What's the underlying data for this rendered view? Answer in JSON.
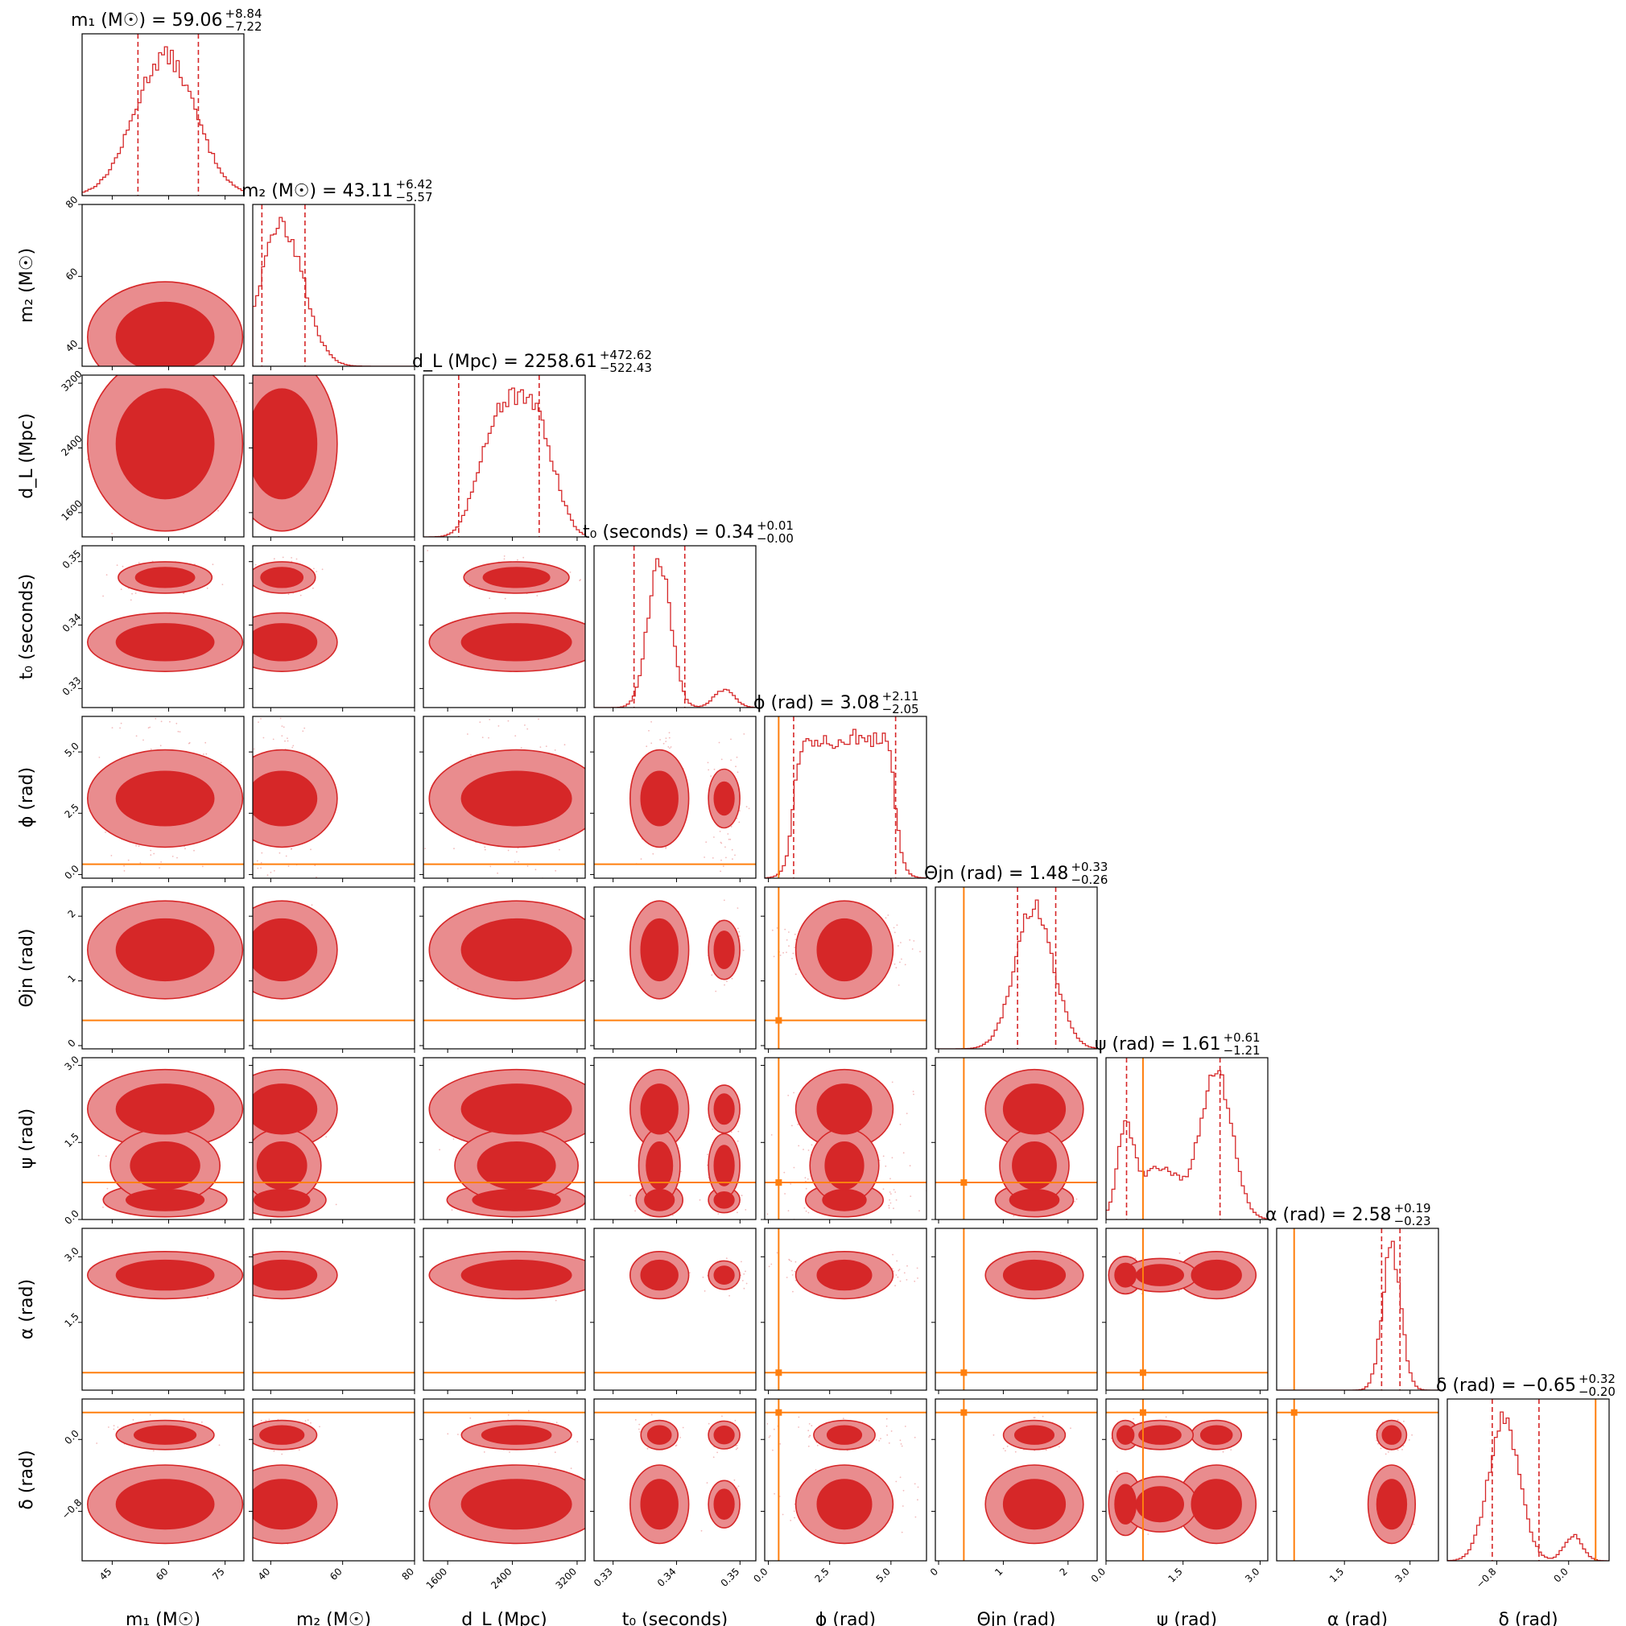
{
  "colors": {
    "posterior": "#d62728",
    "posterior_light": "#e98c8e",
    "injection": "#ff7f0e",
    "frame": "#000000"
  },
  "chart_data": {
    "type": "corner",
    "parameters": [
      {
        "id": "m1",
        "axis_label": "m₁ (M☉)",
        "title": "m₁ (M☉) = 59.06",
        "median": 59.06,
        "plus": "+8.84",
        "minus": "−7.22",
        "range": [
          37,
          80
        ],
        "ticks": [
          45,
          60,
          75
        ],
        "tick_labels": [
          "45",
          "60",
          "75"
        ],
        "quantiles": [
          51.84,
          67.9
        ],
        "injection": null
      },
      {
        "id": "m2",
        "axis_label": "m₂ (M☉)",
        "title": "m₂ (M☉) = 43.11",
        "median": 43.11,
        "plus": "+6.42",
        "minus": "−5.57",
        "range": [
          35,
          80
        ],
        "ticks": [
          40,
          60,
          80
        ],
        "tick_labels": [
          "40",
          "60",
          "80"
        ],
        "quantiles": [
          37.54,
          49.53
        ],
        "injection": null
      },
      {
        "id": "dL",
        "axis_label": "d_L (Mpc)",
        "title": "d_L (Mpc) = 2258.61",
        "median": 2258.61,
        "plus": "+472.62",
        "minus": "−522.43",
        "range": [
          1300,
          3300
        ],
        "ticks": [
          1600,
          2400,
          3200
        ],
        "tick_labels": [
          "1600",
          "2400",
          "3200"
        ],
        "quantiles": [
          1736.18,
          2731.23
        ],
        "injection": null
      },
      {
        "id": "t0",
        "axis_label": "t₀ (seconds)",
        "title": "t₀ (seconds) = 0.34",
        "median": 0.34,
        "plus": "+0.01",
        "minus": "−0.00",
        "range": [
          0.327,
          0.3525
        ],
        "ticks": [
          0.33,
          0.34,
          0.35
        ],
        "tick_labels": [
          "0.33",
          "0.34",
          "0.35"
        ],
        "quantiles": [
          0.3333,
          0.3413
        ],
        "injection": null
      },
      {
        "id": "phi",
        "axis_label": "ϕ (rad)",
        "title": "ϕ (rad) = 3.08",
        "median": 3.08,
        "plus": "+2.11",
        "minus": "−2.05",
        "range": [
          -0.15,
          6.45
        ],
        "ticks": [
          0.0,
          2.5,
          5.0
        ],
        "tick_labels": [
          "0.0",
          "2.5",
          "5.0"
        ],
        "quantiles": [
          1.03,
          5.19
        ],
        "injection": 0.42
      },
      {
        "id": "thetajn",
        "axis_label": "Θjn (rad)",
        "title": "Θjn (rad) = 1.48",
        "median": 1.48,
        "plus": "+0.33",
        "minus": "−0.26",
        "range": [
          -0.05,
          2.45
        ],
        "ticks": [
          0,
          1,
          2
        ],
        "tick_labels": [
          "0",
          "1",
          "2"
        ],
        "quantiles": [
          1.22,
          1.81
        ],
        "injection": 0.39
      },
      {
        "id": "psi",
        "axis_label": "ψ (rad)",
        "title": "ψ (rad) = 1.61",
        "median": 1.61,
        "plus": "+0.61",
        "minus": "−1.21",
        "range": [
          0.0,
          3.15
        ],
        "ticks": [
          0.0,
          1.5,
          3.0
        ],
        "tick_labels": [
          "0.0",
          "1.5",
          "3.0"
        ],
        "quantiles": [
          0.4,
          2.22
        ],
        "injection": 0.72
      },
      {
        "id": "alpha",
        "axis_label": "α (rad)",
        "title": "α (rad) = 2.58",
        "median": 2.58,
        "plus": "+0.19",
        "minus": "−0.23",
        "range": [
          -0.05,
          3.65
        ],
        "ticks": [
          1.5,
          3.0
        ],
        "tick_labels": [
          "1.5",
          "3.0"
        ],
        "quantiles": [
          2.35,
          2.77
        ],
        "injection": 0.35
      },
      {
        "id": "delta",
        "axis_label": "δ (rad)",
        "title": "δ (rad) = −0.65",
        "median": -0.65,
        "plus": "+0.32",
        "minus": "−0.20",
        "range": [
          -1.35,
          0.45
        ],
        "ticks": [
          -0.8,
          0.0
        ],
        "tick_labels": [
          "−0.8",
          "0.0"
        ],
        "quantiles": [
          -0.85,
          -0.33
        ],
        "injection": 0.3
      }
    ],
    "contour_levels": [
      "inner (high density)",
      "outer"
    ],
    "grid": false,
    "legend": "none"
  }
}
